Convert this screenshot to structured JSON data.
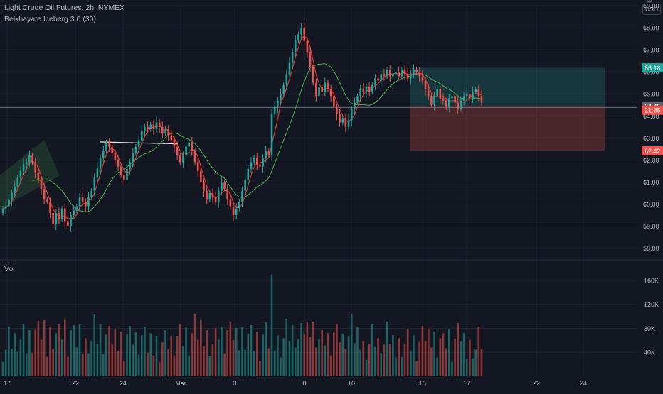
{
  "header": {
    "title": "Light Crude Oil Futures, 2h, NYMEX",
    "indicator": "Belkhayate Iceberg 3.0 (30)",
    "currency": "USD",
    "volume_label": "Vol"
  },
  "colors": {
    "background": "#131722",
    "up": "#26a69a",
    "down": "#ef5350",
    "grid": "#1e222d",
    "text": "#b2b5be",
    "ma_red": "#e53935",
    "ma_green": "#4caf50",
    "target_zone": "#26a69a",
    "stop_zone": "#ef5350"
  },
  "chart_data": {
    "type": "candlestick",
    "price_axis": {
      "ticks": [
        "58.00",
        "59.00",
        "60.00",
        "61.00",
        "62.00",
        "63.00",
        "64.00",
        "65.00",
        "66.00",
        "67.00",
        "68.00",
        "69.00"
      ],
      "ylim": [
        57.6,
        69.0
      ]
    },
    "volume_axis": {
      "ticks": [
        "40K",
        "80K",
        "120K",
        "160K"
      ],
      "ylim": [
        0,
        180000
      ]
    },
    "time_axis": [
      "17",
      "22",
      "24",
      "Mar",
      "3",
      "8",
      "10",
      "15",
      "17",
      "22",
      "24"
    ],
    "price_labels": [
      {
        "value": 66.18,
        "text": "66.18",
        "kind": "target"
      },
      {
        "value": 64.45,
        "text": "64.45",
        "kind": "current"
      },
      {
        "value": 64.26,
        "text": "21:35",
        "kind": "countdown"
      },
      {
        "value": 62.42,
        "text": "62.42",
        "kind": "stop"
      }
    ],
    "closes": [
      59.8,
      59.9,
      60.2,
      60.5,
      60.8,
      61.2,
      61.5,
      61.8,
      61.9,
      62.2,
      61.9,
      61.4,
      61.1,
      60.7,
      60.2,
      60.1,
      59.6,
      59.1,
      59.6,
      59.3,
      59.8,
      59.2,
      59.0,
      59.5,
      59.7,
      59.9,
      60.3,
      60.1,
      59.9,
      60.3,
      60.6,
      61.2,
      61.6,
      62.1,
      62.4,
      62.8,
      62.6,
      62.3,
      62.0,
      61.7,
      61.3,
      61.1,
      61.6,
      61.9,
      62.3,
      62.6,
      62.9,
      63.3,
      63.5,
      63.4,
      63.6,
      63.4,
      63.7,
      63.5,
      63.2,
      63.4,
      63.1,
      62.9,
      62.6,
      62.2,
      61.9,
      62.2,
      62.6,
      62.8,
      62.4,
      61.9,
      61.5,
      61.0,
      60.6,
      60.2,
      60.5,
      60.3,
      60.1,
      60.6,
      61.0,
      60.7,
      60.2,
      59.9,
      59.5,
      59.8,
      60.1,
      60.6,
      61.1,
      61.6,
      61.9,
      62.1,
      61.8,
      61.7,
      62.1,
      62.4,
      62.2,
      64.1,
      64.4,
      64.7,
      65.0,
      65.4,
      65.9,
      66.4,
      66.9,
      67.4,
      67.7,
      68.0,
      67.4,
      66.9,
      66.2,
      65.5,
      64.9,
      65.3,
      65.1,
      65.5,
      65.2,
      64.9,
      64.4,
      64.1,
      63.7,
      63.9,
      63.5,
      63.8,
      64.3,
      64.6,
      64.9,
      65.2,
      65.1,
      65.3,
      65.1,
      65.4,
      65.7,
      65.6,
      65.9,
      65.8,
      66.1,
      65.8,
      65.9,
      66.0,
      65.8,
      66.1,
      65.9,
      65.7,
      65.9,
      66.1,
      66.0,
      65.8,
      65.6,
      65.2,
      64.9,
      64.5,
      64.9,
      65.2,
      64.8,
      64.7,
      64.4,
      64.8,
      64.9,
      64.6,
      64.3,
      64.7,
      64.9,
      65.0,
      64.8,
      65.1,
      65.2,
      64.9,
      64.6
    ],
    "target_price": 66.18,
    "entry_price": 64.45,
    "stop_price": 62.42
  }
}
